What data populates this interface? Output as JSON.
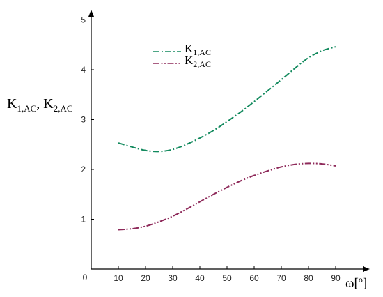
{
  "chart_data": {
    "type": "line",
    "x": [
      10,
      15,
      20,
      25,
      30,
      35,
      40,
      45,
      50,
      55,
      60,
      65,
      70,
      75,
      80,
      85,
      90
    ],
    "xticks": [
      "10",
      "20",
      "30",
      "40",
      "50",
      "60",
      "70",
      "80",
      "90"
    ],
    "yticks": [
      "1",
      "2",
      "3",
      "4",
      "5"
    ],
    "origin_label": "0",
    "xlim": [
      0,
      100
    ],
    "ylim": [
      0,
      5.3
    ],
    "xlabel": {
      "main": "ω[",
      "sup": "o",
      "end": "]"
    },
    "ylabel": {
      "k1": "K",
      "k1_sub": "1,AC",
      "sep": ", K",
      "k2_sub": "2,AC"
    },
    "grid": false,
    "legend_position": "top-center",
    "series": [
      {
        "name": "K1,AC",
        "label_main": "K",
        "label_sub": "1,AC",
        "color": "#138a5e",
        "style": "dash-dot",
        "values": [
          2.53,
          2.45,
          2.38,
          2.36,
          2.4,
          2.5,
          2.63,
          2.78,
          2.96,
          3.15,
          3.36,
          3.58,
          3.8,
          4.03,
          4.24,
          4.38,
          4.46
        ]
      },
      {
        "name": "K2,AC",
        "label_main": "K",
        "label_sub": "2,AC",
        "color": "#8e2a5a",
        "style": "dash-dot-dot",
        "values": [
          0.79,
          0.81,
          0.86,
          0.95,
          1.06,
          1.2,
          1.35,
          1.5,
          1.64,
          1.77,
          1.88,
          1.97,
          2.05,
          2.1,
          2.12,
          2.11,
          2.07
        ]
      }
    ]
  }
}
